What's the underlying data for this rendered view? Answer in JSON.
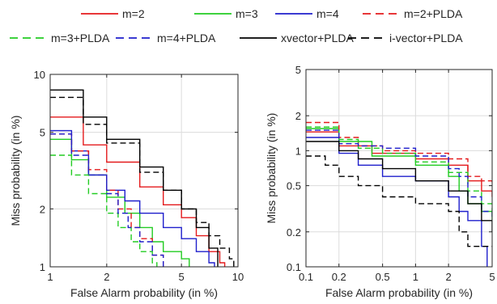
{
  "legend": [
    {
      "label": "m=2",
      "color": "#e41a1c",
      "dash": false
    },
    {
      "label": "m=3",
      "color": "#22cc22",
      "dash": false
    },
    {
      "label": "m=4",
      "color": "#1f1fcc",
      "dash": false
    },
    {
      "label": "m=2+PLDA",
      "color": "#e41a1c",
      "dash": true
    },
    {
      "label": "m=3+PLDA",
      "color": "#22cc22",
      "dash": true
    },
    {
      "label": "m=4+PLDA",
      "color": "#1f1fcc",
      "dash": true
    },
    {
      "label": "xvector+PLDA",
      "color": "#000000",
      "dash": false
    },
    {
      "label": "i-vector+PLDA",
      "color": "#000000",
      "dash": true
    }
  ],
  "chart_data": [
    {
      "type": "line",
      "xlabel": "False Alarm probability (in %)",
      "ylabel": "Miss probability (in %)",
      "xscale": "log",
      "yscale": "log",
      "xlim": [
        1,
        10
      ],
      "ylim": [
        1,
        10
      ],
      "xticks": [
        1,
        2,
        5,
        10
      ],
      "xtick_labels": [
        "1",
        "2",
        "5",
        "10"
      ],
      "yticks": [
        1,
        2,
        5,
        10
      ],
      "ytick_labels": [
        "1",
        "2",
        "5",
        "10"
      ],
      "grid": true,
      "series": [
        {
          "name": "m=2",
          "points": [
            [
              1,
              6.0
            ],
            [
              1.5,
              4.3
            ],
            [
              2,
              3.5
            ],
            [
              3,
              2.6
            ],
            [
              4,
              2.1
            ],
            [
              5,
              1.8
            ],
            [
              6,
              1.45
            ],
            [
              7,
              1.2
            ],
            [
              8,
              1.05
            ],
            [
              8.5,
              1.0
            ]
          ]
        },
        {
          "name": "m=3",
          "points": [
            [
              1,
              4.6
            ],
            [
              1.3,
              3.6
            ],
            [
              1.6,
              3.0
            ],
            [
              2,
              2.3
            ],
            [
              2.5,
              1.9
            ],
            [
              3,
              1.6
            ],
            [
              3.5,
              1.35
            ],
            [
              4,
              1.2
            ],
            [
              5,
              1.1
            ],
            [
              5.5,
              1.0
            ]
          ]
        },
        {
          "name": "m=4",
          "points": [
            [
              1,
              5.1
            ],
            [
              1.3,
              4.0
            ],
            [
              1.6,
              3.0
            ],
            [
              2,
              2.5
            ],
            [
              2.5,
              2.2
            ],
            [
              3,
              1.9
            ],
            [
              4,
              1.6
            ],
            [
              5,
              1.4
            ],
            [
              6,
              1.2
            ],
            [
              7,
              1.05
            ],
            [
              7.5,
              1.0
            ]
          ]
        },
        {
          "name": "m=2+PLDA",
          "points": [
            [
              1,
              4.9
            ],
            [
              1.3,
              4.0
            ],
            [
              1.6,
              3.2
            ],
            [
              2,
              2.5
            ],
            [
              2.3,
              2.0
            ],
            [
              2.7,
              1.6
            ],
            [
              3,
              1.4
            ],
            [
              3.5,
              1.15
            ],
            [
              4,
              1.0
            ]
          ]
        },
        {
          "name": "m=3+PLDA",
          "points": [
            [
              1,
              3.8
            ],
            [
              1.3,
              3.0
            ],
            [
              1.6,
              2.4
            ],
            [
              2,
              1.9
            ],
            [
              2.3,
              1.6
            ],
            [
              2.7,
              1.35
            ],
            [
              3,
              1.2
            ],
            [
              3.5,
              1.05
            ],
            [
              3.7,
              1.0
            ]
          ]
        },
        {
          "name": "m=4+PLDA",
          "points": [
            [
              1,
              4.9
            ],
            [
              1.3,
              3.8
            ],
            [
              1.6,
              3.0
            ],
            [
              2,
              2.4
            ],
            [
              2.3,
              1.9
            ],
            [
              2.6,
              1.6
            ],
            [
              3,
              1.35
            ],
            [
              3.5,
              1.15
            ],
            [
              4,
              1.0
            ]
          ]
        },
        {
          "name": "xvector+PLDA",
          "points": [
            [
              1,
              8.3
            ],
            [
              1.5,
              6.0
            ],
            [
              2,
              4.6
            ],
            [
              3,
              3.3
            ],
            [
              4,
              2.5
            ],
            [
              5,
              2.0
            ],
            [
              6,
              1.6
            ],
            [
              7,
              1.25
            ],
            [
              7.8,
              1.0
            ]
          ]
        },
        {
          "name": "i-vector+PLDA",
          "points": [
            [
              1,
              7.6
            ],
            [
              1.5,
              5.5
            ],
            [
              2,
              4.4
            ],
            [
              3,
              3.1
            ],
            [
              4,
              2.5
            ],
            [
              5,
              2.0
            ],
            [
              6,
              1.7
            ],
            [
              7,
              1.45
            ],
            [
              8,
              1.25
            ],
            [
              9,
              1.1
            ],
            [
              9.5,
              1.0
            ]
          ]
        }
      ]
    },
    {
      "type": "line",
      "xlabel": "False Alarm probability (in %)",
      "ylabel": "Miss probability (in %)",
      "xscale": "log",
      "yscale": "log",
      "xlim": [
        0.1,
        5
      ],
      "ylim": [
        0.1,
        5
      ],
      "xticks": [
        0.1,
        0.2,
        0.5,
        1,
        2,
        5
      ],
      "xtick_labels": [
        "0.1",
        "0.2",
        "0.5",
        "1",
        "2",
        "5"
      ],
      "yticks": [
        0.1,
        0.2,
        0.5,
        1,
        2,
        5
      ],
      "ytick_labels": [
        "0.1",
        "0.2",
        "0.5",
        "1",
        "2",
        "5"
      ],
      "grid": true,
      "series": [
        {
          "name": "m=2",
          "points": [
            [
              0.1,
              1.45
            ],
            [
              0.2,
              1.1
            ],
            [
              0.4,
              0.95
            ],
            [
              1,
              0.85
            ],
            [
              2,
              0.75
            ],
            [
              3,
              0.55
            ],
            [
              4,
              0.45
            ],
            [
              5,
              0.4
            ]
          ]
        },
        {
          "name": "m=3",
          "points": [
            [
              0.1,
              1.55
            ],
            [
              0.2,
              1.2
            ],
            [
              0.4,
              0.9
            ],
            [
              1,
              0.75
            ],
            [
              2,
              0.6
            ],
            [
              2.5,
              0.45
            ],
            [
              3,
              0.35
            ],
            [
              4,
              0.3
            ],
            [
              5,
              0.25
            ]
          ]
        },
        {
          "name": "m=4",
          "points": [
            [
              0.1,
              1.3
            ],
            [
              0.2,
              0.95
            ],
            [
              0.3,
              0.75
            ],
            [
              0.5,
              0.6
            ],
            [
              1,
              0.55
            ],
            [
              2,
              0.4
            ],
            [
              2.5,
              0.3
            ],
            [
              3,
              0.25
            ],
            [
              4,
              0.15
            ],
            [
              4.5,
              0.1
            ]
          ]
        },
        {
          "name": "m=2+PLDA",
          "points": [
            [
              0.1,
              1.75
            ],
            [
              0.2,
              1.3
            ],
            [
              0.3,
              1.1
            ],
            [
              0.5,
              1.0
            ],
            [
              1,
              0.95
            ],
            [
              2,
              0.85
            ],
            [
              3,
              0.6
            ],
            [
              4,
              0.55
            ],
            [
              5,
              0.5
            ]
          ]
        },
        {
          "name": "m=3+PLDA",
          "points": [
            [
              0.1,
              1.6
            ],
            [
              0.2,
              1.25
            ],
            [
              0.3,
              1.05
            ],
            [
              0.5,
              0.95
            ],
            [
              1,
              0.8
            ],
            [
              2,
              0.65
            ],
            [
              3,
              0.45
            ],
            [
              4,
              0.35
            ],
            [
              5,
              0.3
            ]
          ]
        },
        {
          "name": "m=4+PLDA",
          "points": [
            [
              0.1,
              1.5
            ],
            [
              0.2,
              1.15
            ],
            [
              0.3,
              1.1
            ],
            [
              0.5,
              1.05
            ],
            [
              1,
              0.9
            ],
            [
              2,
              0.7
            ],
            [
              2.5,
              0.6
            ],
            [
              3,
              0.4
            ],
            [
              4,
              0.3
            ],
            [
              5,
              0.25
            ]
          ]
        },
        {
          "name": "xvector+PLDA",
          "points": [
            [
              0.1,
              1.2
            ],
            [
              0.2,
              1.0
            ],
            [
              0.3,
              0.85
            ],
            [
              0.5,
              0.7
            ],
            [
              1,
              0.55
            ],
            [
              2,
              0.45
            ],
            [
              3,
              0.35
            ],
            [
              4,
              0.25
            ],
            [
              5,
              0.2
            ]
          ]
        },
        {
          "name": "i-vector+PLDA",
          "points": [
            [
              0.1,
              0.9
            ],
            [
              0.15,
              0.75
            ],
            [
              0.2,
              0.6
            ],
            [
              0.3,
              0.5
            ],
            [
              0.5,
              0.4
            ],
            [
              1,
              0.35
            ],
            [
              2,
              0.3
            ],
            [
              2.5,
              0.2
            ],
            [
              3,
              0.15
            ],
            [
              4,
              0.15
            ],
            [
              5,
              0.15
            ]
          ]
        }
      ]
    }
  ]
}
